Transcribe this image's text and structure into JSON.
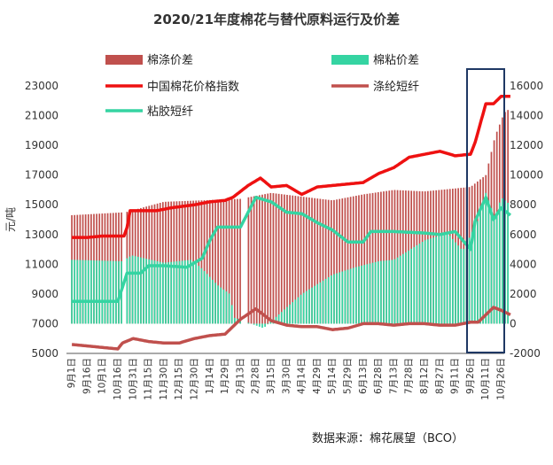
{
  "chart_data": {
    "type": "bar",
    "title": "2020/21年度棉花与替代原料运行及价差",
    "ylabel": "元/吨",
    "source": "数据来源：棉花展望（BCO）",
    "y_left": {
      "min": 5000,
      "max": 23000,
      "ticks": [
        "5000",
        "7000",
        "9000",
        "11000",
        "13000",
        "15000",
        "17000",
        "19000",
        "21000",
        "23000"
      ]
    },
    "y_right": {
      "min": -2000,
      "max": 16000,
      "ticks": [
        "-2000",
        "0",
        "2000",
        "4000",
        "6000",
        "8000",
        "10000",
        "12000",
        "14000",
        "16000"
      ]
    },
    "x_labels": [
      "9月1日",
      "9月16日",
      "10月1日",
      "10月16日",
      "10月31日",
      "11月15日",
      "11月30日",
      "12月15日",
      "12月30日",
      "1月14日",
      "1月29日",
      "2月13日",
      "2月28日",
      "3月15日",
      "3月30日",
      "4月14日",
      "4月29日",
      "5月14日",
      "5月29日",
      "6月13日",
      "6月28日",
      "7月13日",
      "7月28日",
      "8月12日",
      "8月27日",
      "9月11日",
      "9月26日",
      "10月11日",
      "10月26日"
    ],
    "legend": [
      {
        "name": "棉涤价差",
        "kind": "bar",
        "color": "#c0504d"
      },
      {
        "name": "棉粘价差",
        "kind": "bar",
        "color": "#35d4a2"
      },
      {
        "name": "中国棉花价格指数",
        "kind": "line",
        "color": "#ee1111"
      },
      {
        "name": "涤纶短纤",
        "kind": "line",
        "color": "#c0504d"
      },
      {
        "name": "粘胶短纤",
        "kind": "line",
        "color": "#35d4a2"
      }
    ],
    "series": [
      {
        "name": "棉涤价差",
        "axis": "right",
        "color": "#c0504d",
        "anchors": [
          [
            0,
            7300
          ],
          [
            3.5,
            7500
          ],
          [
            6,
            8200
          ],
          [
            11,
            8400
          ],
          [
            13,
            8800
          ],
          [
            17,
            8300
          ],
          [
            19,
            8700
          ],
          [
            21,
            9000
          ],
          [
            23,
            8900
          ],
          [
            25,
            9100
          ],
          [
            26,
            9200
          ],
          [
            27,
            10000
          ],
          [
            27.6,
            12600
          ],
          [
            28.2,
            14200
          ],
          [
            28.6,
            14500
          ]
        ]
      },
      {
        "name": "棉粘价差",
        "axis": "right",
        "color": "#35d4a2",
        "anchors": [
          [
            0,
            4300
          ],
          [
            3.3,
            4200
          ],
          [
            3.9,
            4600
          ],
          [
            6,
            4100
          ],
          [
            7.8,
            4300
          ],
          [
            8.5,
            3700
          ],
          [
            9.5,
            2600
          ],
          [
            10.3,
            2000
          ],
          [
            10.6,
            400
          ],
          [
            12.5,
            -300
          ],
          [
            13.8,
            900
          ],
          [
            15,
            2000
          ],
          [
            17,
            3300
          ],
          [
            18.5,
            3800
          ],
          [
            20,
            4200
          ],
          [
            21,
            4300
          ],
          [
            23,
            5600
          ],
          [
            24.5,
            6100
          ],
          [
            25.5,
            4900
          ],
          [
            26.5,
            7000
          ],
          [
            27,
            8800
          ],
          [
            27.6,
            7100
          ],
          [
            28,
            8500
          ],
          [
            28.6,
            8000
          ]
        ]
      },
      {
        "name": "中国棉花价格指数",
        "axis": "left",
        "color": "#ee1111",
        "anchors": [
          [
            0,
            12800
          ],
          [
            1,
            12800
          ],
          [
            2,
            12900
          ],
          [
            3,
            12900
          ],
          [
            3.5,
            12900
          ],
          [
            3.8,
            14600
          ],
          [
            4.5,
            14600
          ],
          [
            5.5,
            14600
          ],
          [
            6.5,
            14800
          ],
          [
            8,
            15000
          ],
          [
            9,
            15200
          ],
          [
            10,
            15300
          ],
          [
            10.5,
            15500
          ],
          [
            11.5,
            16300
          ],
          [
            12.3,
            16800
          ],
          [
            13,
            16200
          ],
          [
            14,
            16300
          ],
          [
            15,
            15700
          ],
          [
            16,
            16200
          ],
          [
            17,
            16300
          ],
          [
            18,
            16400
          ],
          [
            19,
            16500
          ],
          [
            20,
            17100
          ],
          [
            21,
            17500
          ],
          [
            22,
            18200
          ],
          [
            23,
            18400
          ],
          [
            24,
            18600
          ],
          [
            25,
            18300
          ],
          [
            26,
            18400
          ],
          [
            26.3,
            19200
          ],
          [
            27,
            21800
          ],
          [
            27.5,
            21800
          ],
          [
            28,
            22300
          ],
          [
            28.6,
            22300
          ]
        ]
      },
      {
        "name": "涤纶短纤",
        "axis": "left",
        "color": "#c0504d",
        "anchors": [
          [
            0,
            5600
          ],
          [
            2,
            5400
          ],
          [
            3,
            5300
          ],
          [
            3.3,
            5700
          ],
          [
            4,
            6000
          ],
          [
            5,
            5800
          ],
          [
            6,
            5700
          ],
          [
            7,
            5700
          ],
          [
            8,
            6000
          ],
          [
            9,
            6200
          ],
          [
            10,
            6300
          ],
          [
            11,
            7300
          ],
          [
            12,
            8000
          ],
          [
            13,
            7200
          ],
          [
            14,
            6900
          ],
          [
            15,
            6800
          ],
          [
            16,
            6800
          ],
          [
            17,
            6600
          ],
          [
            18,
            6700
          ],
          [
            19,
            7000
          ],
          [
            20,
            7000
          ],
          [
            21,
            6900
          ],
          [
            22,
            7000
          ],
          [
            23,
            7000
          ],
          [
            24,
            6900
          ],
          [
            25,
            6900
          ],
          [
            26,
            7100
          ],
          [
            26.5,
            7100
          ],
          [
            27,
            7600
          ],
          [
            27.5,
            8100
          ],
          [
            28,
            7900
          ],
          [
            28.6,
            7600
          ]
        ]
      },
      {
        "name": "粘胶短纤",
        "axis": "left",
        "color": "#35d4a2",
        "anchors": [
          [
            0,
            8500
          ],
          [
            1,
            8500
          ],
          [
            2,
            8500
          ],
          [
            3,
            8500
          ],
          [
            3.6,
            10400
          ],
          [
            4.5,
            10400
          ],
          [
            5,
            10900
          ],
          [
            6,
            10900
          ],
          [
            7.5,
            10800
          ],
          [
            8,
            11100
          ],
          [
            8.5,
            11400
          ],
          [
            9,
            12600
          ],
          [
            9.5,
            13500
          ],
          [
            10,
            13500
          ],
          [
            11,
            13500
          ],
          [
            12,
            15500
          ],
          [
            13,
            15200
          ],
          [
            14,
            14500
          ],
          [
            15,
            14400
          ],
          [
            16,
            13800
          ],
          [
            17,
            13300
          ],
          [
            18,
            12500
          ],
          [
            19,
            12500
          ],
          [
            19.5,
            13200
          ],
          [
            20,
            13200
          ],
          [
            21,
            13200
          ],
          [
            23,
            13100
          ],
          [
            24,
            13000
          ],
          [
            25,
            13200
          ],
          [
            26,
            12000
          ],
          [
            26.3,
            13900
          ],
          [
            27,
            15500
          ],
          [
            27.5,
            14000
          ],
          [
            28,
            14800
          ],
          [
            28.6,
            14300
          ]
        ]
      }
    ]
  }
}
